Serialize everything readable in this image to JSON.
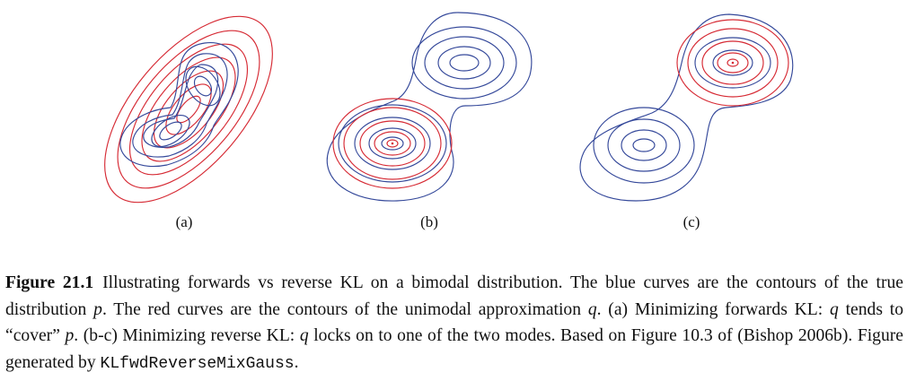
{
  "figure": {
    "panels": [
      {
        "label": "(a)"
      },
      {
        "label": "(b)"
      },
      {
        "label": "(c)"
      }
    ],
    "colors": {
      "true_distribution": "#34489a",
      "approximation": "#d62a34"
    }
  },
  "caption": {
    "figure_number": "Figure 21.1",
    "s1": "Illustrating forwards vs reverse KL on a bimodal distribution. The blue curves are the contours of the true distribution ",
    "var_p1": "p",
    "s2": ". The red curves are the contours of the unimodal approximation ",
    "var_q1": "q",
    "s3": ". (a) Minimizing forwards KL: ",
    "var_q2": "q",
    "s4": " tends to “cover” ",
    "var_p2": "p",
    "s5": ". (b-c) Minimizing reverse KL: ",
    "var_q3": "q",
    "s6": " locks on to one of the two modes. Based on Figure 10.3 of (Bishop 2006b). Figure generated by ",
    "code": "KLfwdReverseMixGauss",
    "s7": "."
  }
}
